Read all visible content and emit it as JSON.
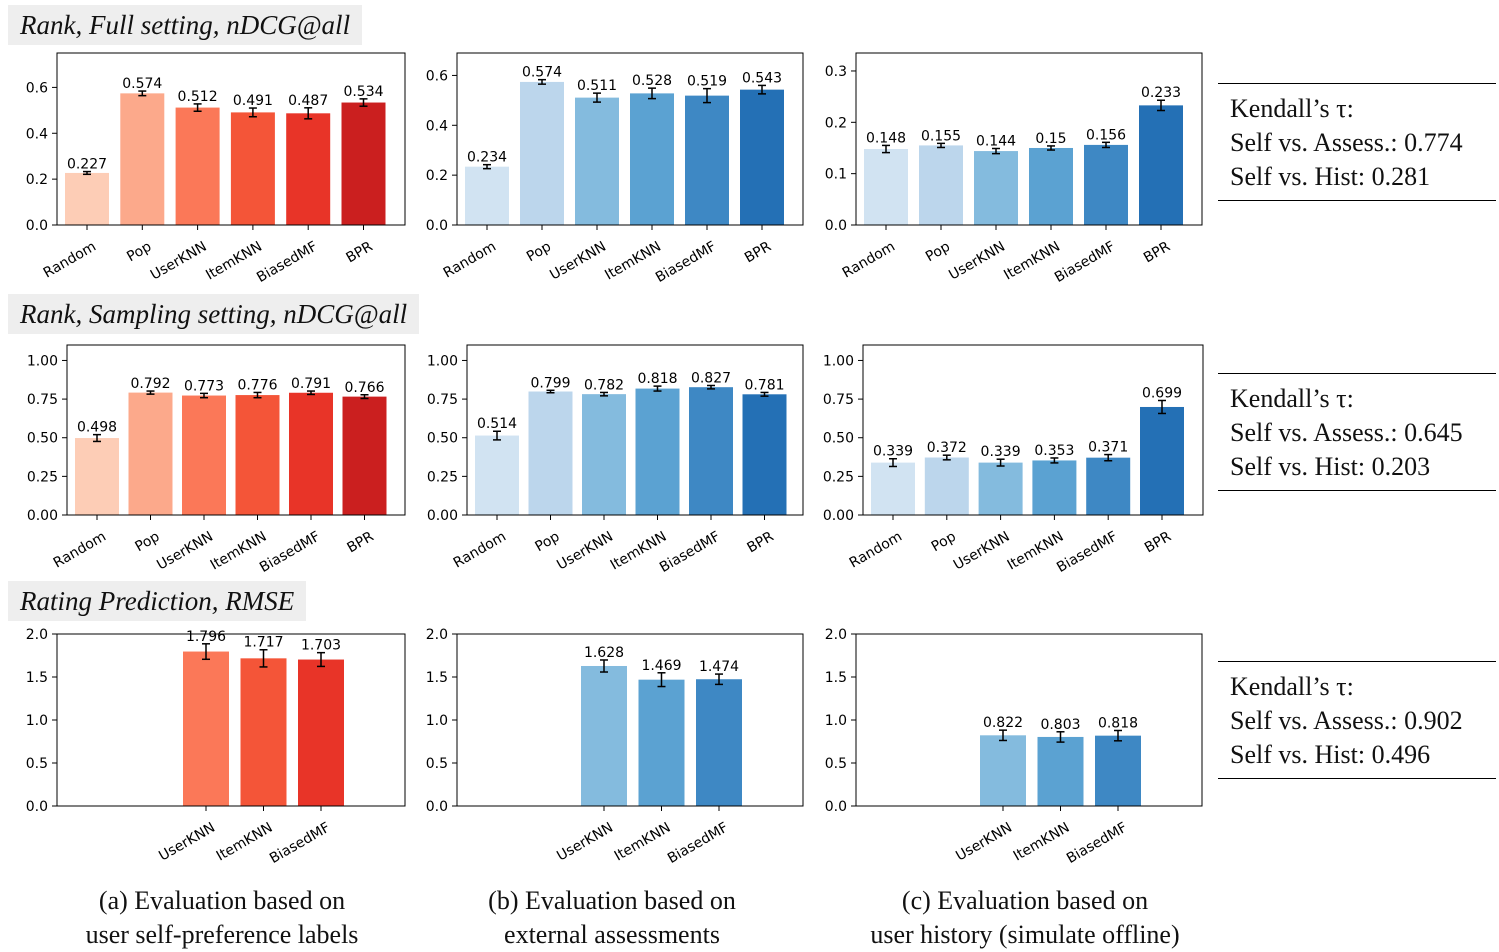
{
  "section_titles": {
    "full": "Rank, Full setting, nDCG@all",
    "sampling": "Rank, Sampling setting, nDCG@all",
    "rating": "Rating Prediction, RMSE"
  },
  "kendall": [
    {
      "title": "Kendall’s τ:",
      "assess": "Self vs. Assess.: 0.774",
      "hist": "Self vs. Hist: 0.281"
    },
    {
      "title": "Kendall’s τ:",
      "assess": "Self vs. Assess.: 0.645",
      "hist": "Self vs. Hist: 0.203"
    },
    {
      "title": "Kendall’s τ:",
      "assess": "Self vs. Assess.: 0.902",
      "hist": "Self vs. Hist: 0.496"
    }
  ],
  "captions": [
    {
      "line1": "(a)  Evaluation based on",
      "line2": "user self-preference labels"
    },
    {
      "line1": "(b)  Evaluation based on",
      "line2": "external assessments"
    },
    {
      "line1": "(c)  Evaluation based on",
      "line2": "user history (simulate offline)"
    }
  ],
  "colors": {
    "reds": [
      "#fdcdb6",
      "#fca98b",
      "#fb7858",
      "#f45538",
      "#e83428",
      "#cb1f1f"
    ],
    "blues": [
      "#d1e3f2",
      "#bcd6ec",
      "#84bbde",
      "#5ba2d2",
      "#3e88c4",
      "#2470b5"
    ]
  },
  "chart_data": [
    {
      "id": "full-self",
      "type": "bar",
      "palette": "reds",
      "ylim": [
        0,
        0.75
      ],
      "yticks": [
        "0.0",
        "0.2",
        "0.4",
        "0.6"
      ],
      "categories": [
        "Random",
        "Pop",
        "UserKNN",
        "ItemKNN",
        "BiasedMF",
        "BPR"
      ],
      "values": [
        0.227,
        0.574,
        0.512,
        0.491,
        0.487,
        0.534
      ],
      "labels": [
        "0.227",
        "0.574",
        "0.512",
        "0.491",
        "0.487",
        "0.534"
      ],
      "errors": [
        0.006,
        0.01,
        0.016,
        0.019,
        0.024,
        0.016
      ]
    },
    {
      "id": "full-assess",
      "type": "bar",
      "palette": "blues",
      "ylim": [
        0,
        0.69
      ],
      "yticks": [
        "0.0",
        "0.2",
        "0.4",
        "0.6"
      ],
      "categories": [
        "Random",
        "Pop",
        "UserKNN",
        "ItemKNN",
        "BiasedMF",
        "BPR"
      ],
      "values": [
        0.234,
        0.574,
        0.511,
        0.528,
        0.519,
        0.543
      ],
      "labels": [
        "0.234",
        "0.574",
        "0.511",
        "0.528",
        "0.519",
        "0.543"
      ],
      "errors": [
        0.008,
        0.009,
        0.018,
        0.021,
        0.028,
        0.017
      ]
    },
    {
      "id": "full-hist",
      "type": "bar",
      "palette": "blues",
      "ylim": [
        0,
        0.335
      ],
      "yticks": [
        "0.0",
        "0.1",
        "0.2",
        "0.3"
      ],
      "categories": [
        "Random",
        "Pop",
        "UserKNN",
        "ItemKNN",
        "BiasedMF",
        "BPR"
      ],
      "values": [
        0.148,
        0.155,
        0.144,
        0.15,
        0.156,
        0.233
      ],
      "labels": [
        "0.148",
        "0.155",
        "0.144",
        "0.15",
        "0.156",
        "0.233"
      ],
      "errors": [
        0.007,
        0.004,
        0.005,
        0.004,
        0.005,
        0.01
      ]
    },
    {
      "id": "samp-self",
      "type": "bar",
      "palette": "reds",
      "ylim": [
        0,
        1.1
      ],
      "yticks": [
        "0.00",
        "0.25",
        "0.50",
        "0.75",
        "1.00"
      ],
      "categories": [
        "Random",
        "Pop",
        "UserKNN",
        "ItemKNN",
        "BiasedMF",
        "BPR"
      ],
      "values": [
        0.498,
        0.792,
        0.773,
        0.776,
        0.791,
        0.766
      ],
      "labels": [
        "0.498",
        "0.792",
        "0.773",
        "0.776",
        "0.791",
        "0.766"
      ],
      "errors": [
        0.022,
        0.01,
        0.014,
        0.017,
        0.011,
        0.012
      ]
    },
    {
      "id": "samp-assess",
      "type": "bar",
      "palette": "blues",
      "ylim": [
        0,
        1.1
      ],
      "yticks": [
        "0.00",
        "0.25",
        "0.50",
        "0.75",
        "1.00"
      ],
      "categories": [
        "Random",
        "Pop",
        "UserKNN",
        "ItemKNN",
        "BiasedMF",
        "BPR"
      ],
      "values": [
        0.514,
        0.799,
        0.782,
        0.818,
        0.827,
        0.781
      ],
      "labels": [
        "0.514",
        "0.799",
        "0.782",
        "0.818",
        "0.827",
        "0.781"
      ],
      "errors": [
        0.028,
        0.008,
        0.011,
        0.016,
        0.011,
        0.012
      ]
    },
    {
      "id": "samp-hist",
      "type": "bar",
      "palette": "blues",
      "ylim": [
        0,
        1.1
      ],
      "yticks": [
        "0.00",
        "0.25",
        "0.50",
        "0.75",
        "1.00"
      ],
      "categories": [
        "Random",
        "Pop",
        "UserKNN",
        "ItemKNN",
        "BiasedMF",
        "BPR"
      ],
      "values": [
        0.339,
        0.372,
        0.339,
        0.353,
        0.371,
        0.699
      ],
      "labels": [
        "0.339",
        "0.372",
        "0.339",
        "0.353",
        "0.371",
        "0.699"
      ],
      "errors": [
        0.025,
        0.015,
        0.022,
        0.016,
        0.02,
        0.042
      ]
    },
    {
      "id": "rmse-self",
      "type": "bar",
      "palette": "reds",
      "color_offset": 2,
      "ylim": [
        0,
        2.0
      ],
      "yticks": [
        "0.0",
        "0.5",
        "1.0",
        "1.5",
        "2.0"
      ],
      "categories": [
        "UserKNN",
        "ItemKNN",
        "BiasedMF"
      ],
      "values": [
        1.796,
        1.717,
        1.703
      ],
      "labels": [
        "1.796",
        "1.717",
        "1.703"
      ],
      "errors": [
        0.09,
        0.1,
        0.08
      ]
    },
    {
      "id": "rmse-assess",
      "type": "bar",
      "palette": "blues",
      "color_offset": 2,
      "ylim": [
        0,
        2.0
      ],
      "yticks": [
        "0.0",
        "0.5",
        "1.0",
        "1.5",
        "2.0"
      ],
      "categories": [
        "UserKNN",
        "ItemKNN",
        "BiasedMF"
      ],
      "values": [
        1.628,
        1.469,
        1.474
      ],
      "labels": [
        "1.628",
        "1.469",
        "1.474"
      ],
      "errors": [
        0.07,
        0.08,
        0.06
      ]
    },
    {
      "id": "rmse-hist",
      "type": "bar",
      "palette": "blues",
      "color_offset": 2,
      "ylim": [
        0,
        2.0
      ],
      "yticks": [
        "0.0",
        "0.5",
        "1.0",
        "1.5",
        "2.0"
      ],
      "categories": [
        "UserKNN",
        "ItemKNN",
        "BiasedMF"
      ],
      "values": [
        0.822,
        0.803,
        0.818
      ],
      "labels": [
        "0.822",
        "0.803",
        "0.818"
      ],
      "errors": [
        0.06,
        0.06,
        0.06
      ]
    }
  ]
}
